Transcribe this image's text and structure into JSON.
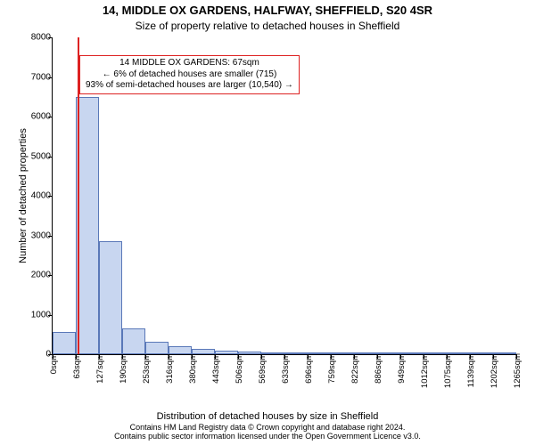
{
  "title_line1": "14, MIDDLE OX GARDENS, HALFWAY, SHEFFIELD, S20 4SR",
  "title_line2": "Size of property relative to detached houses in Sheffield",
  "y_axis_label": "Number of detached properties",
  "x_axis_label": "Distribution of detached houses by size in Sheffield",
  "footer_line1": "Contains HM Land Registry data © Crown copyright and database right 2024.",
  "footer_line2": "Contains public sector information licensed under the Open Government Licence v3.0.",
  "chart": {
    "type": "histogram",
    "background_color": "#ffffff",
    "axis_color": "#000000",
    "bar_fill": "#c8d6f0",
    "bar_border": "#5a78b8",
    "marker_color": "#d22",
    "ylim": [
      0,
      8000
    ],
    "ytick_step": 1000,
    "bin_width_sqm": 63,
    "title_fontsize": 13,
    "subtitle_fontsize": 12,
    "axis_label_fontsize": 11,
    "tick_fontsize": 10,
    "footer_fontsize": 9,
    "xtick_labels": [
      "0sqm",
      "63sqm",
      "127sqm",
      "190sqm",
      "253sqm",
      "316sqm",
      "380sqm",
      "443sqm",
      "506sqm",
      "569sqm",
      "633sqm",
      "696sqm",
      "759sqm",
      "822sqm",
      "886sqm",
      "949sqm",
      "1012sqm",
      "1075sqm",
      "1139sqm",
      "1202sqm",
      "1265sqm"
    ],
    "bar_values": [
      560,
      6500,
      2850,
      650,
      310,
      200,
      130,
      95,
      60,
      40,
      25,
      20,
      12,
      9,
      6,
      5,
      4,
      3,
      2,
      1
    ],
    "marker_value_sqm": 67,
    "info_box": {
      "line1": "14 MIDDLE OX GARDENS: 67sqm",
      "line2": "← 6% of detached houses are smaller (715)",
      "line3": "93% of semi-detached houses are larger (10,540) →"
    }
  }
}
